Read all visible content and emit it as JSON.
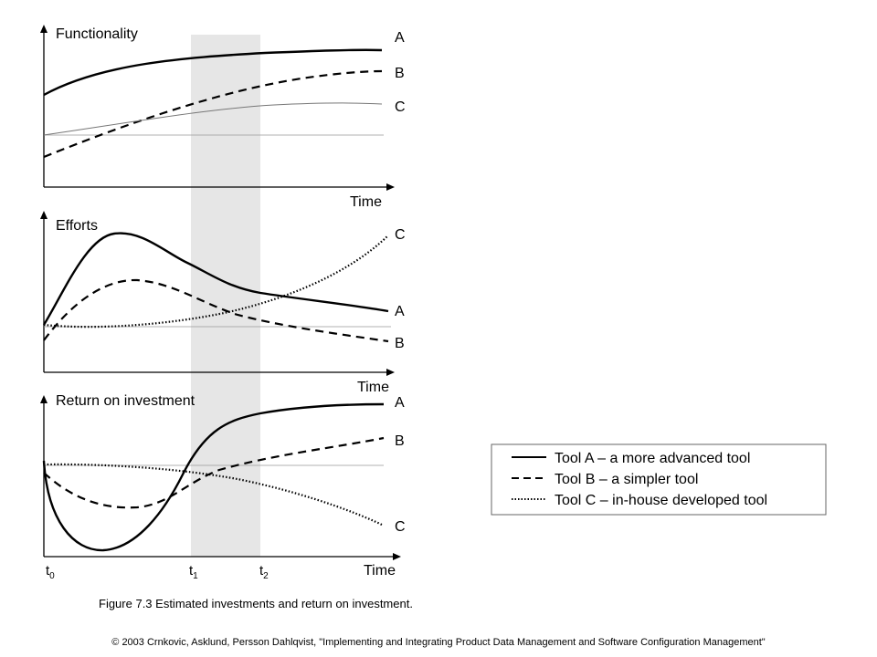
{
  "panels": {
    "functionality": {
      "title": "Functionality",
      "x_axis_label": "Time",
      "curve_labels": {
        "a": "A",
        "b": "B",
        "c": "C"
      }
    },
    "efforts": {
      "title": "Efforts",
      "x_axis_label": "Time",
      "curve_labels": {
        "c": "C",
        "a": "A",
        "b": "B"
      }
    },
    "roi": {
      "title": "Return on investment",
      "x_axis_label": "Time",
      "curve_labels": {
        "a": "A",
        "b": "B",
        "c": "C"
      },
      "ticks": {
        "t0": {
          "base": "t",
          "sub": "0"
        },
        "t1": {
          "base": "t",
          "sub": "1"
        },
        "t2": {
          "base": "t",
          "sub": "2"
        }
      }
    }
  },
  "legend": {
    "items": [
      {
        "style": "solid",
        "label": "Tool A – a more advanced tool"
      },
      {
        "style": "dashed",
        "label": "Tool B – a simpler tool"
      },
      {
        "style": "dotted",
        "label": "Tool C – in-house developed tool"
      }
    ]
  },
  "caption": "Figure 7.3 Estimated investments and return on investment.",
  "footer": "© 2003 Crnkovic, Asklund, Persson Dahlqvist, \"Implementing and Integrating Product Data Management and Software Configuration Management\"",
  "colors": {
    "line": "#000000",
    "band": "#e6e6e6",
    "reference_line": "#999999",
    "legend_border": "#666666"
  }
}
